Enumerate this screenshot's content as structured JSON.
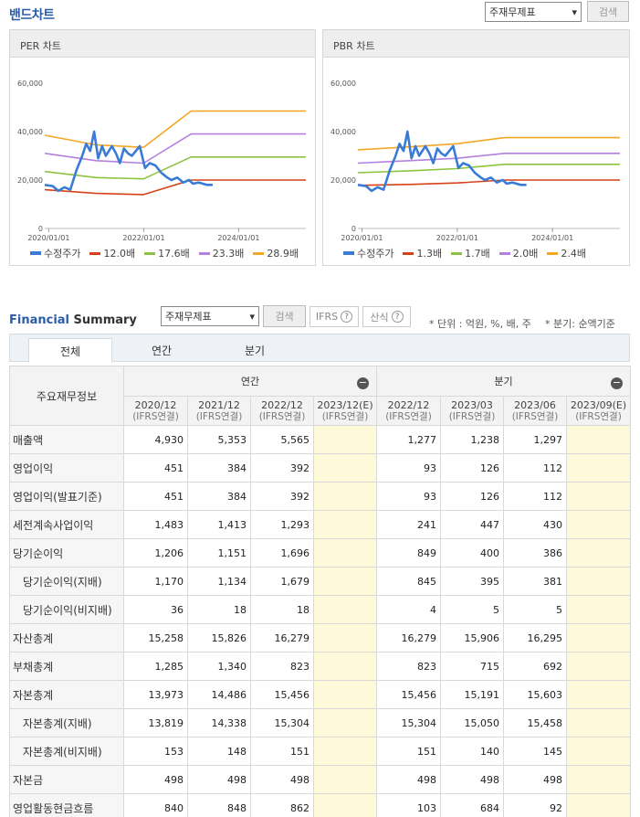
{
  "band_chart": {
    "title": "밴드차트",
    "select_value": "주재무제표",
    "search_label": "검색"
  },
  "per_chart": {
    "title": "PER 차트",
    "chart_data": {
      "type": "line",
      "y_ticks": [
        "0",
        "20,000",
        "40,000",
        "60,000"
      ],
      "ylim": [
        0,
        60000
      ],
      "x_ticks": [
        "2020/01/01",
        "2022/01/01",
        "2024/01/01"
      ],
      "xlim": [
        "2019-12-01",
        "2025-06-01"
      ],
      "series": [
        {
          "name": "수정주가",
          "color": "#3a7bd5",
          "points": [
            [
              "2019-12-01",
              18000
            ],
            [
              "2020-02-01",
              17500
            ],
            [
              "2020-03-15",
              15500
            ],
            [
              "2020-05-01",
              17000
            ],
            [
              "2020-06-15",
              16000
            ],
            [
              "2020-08-01",
              24000
            ],
            [
              "2020-09-15",
              30000
            ],
            [
              "2020-10-15",
              35000
            ],
            [
              "2020-11-15",
              32000
            ],
            [
              "2020-12-15",
              40000
            ],
            [
              "2021-01-15",
              29000
            ],
            [
              "2021-02-15",
              34000
            ],
            [
              "2021-03-15",
              30000
            ],
            [
              "2021-05-01",
              34000
            ],
            [
              "2021-06-01",
              31000
            ],
            [
              "2021-07-01",
              27000
            ],
            [
              "2021-08-01",
              33000
            ],
            [
              "2021-09-01",
              31000
            ],
            [
              "2021-10-01",
              30000
            ],
            [
              "2021-12-01",
              34000
            ],
            [
              "2022-01-10",
              25000
            ],
            [
              "2022-02-15",
              27000
            ],
            [
              "2022-04-01",
              26000
            ],
            [
              "2022-05-15",
              23000
            ],
            [
              "2022-07-01",
              21000
            ],
            [
              "2022-08-01",
              20000
            ],
            [
              "2022-09-15",
              21000
            ],
            [
              "2022-11-01",
              19000
            ],
            [
              "2022-12-15",
              20000
            ],
            [
              "2023-01-15",
              18500
            ],
            [
              "2023-03-01",
              19000
            ],
            [
              "2023-05-01",
              18000
            ],
            [
              "2023-06-15",
              18000
            ]
          ]
        },
        {
          "name": "12.0배",
          "color": "#d4421a",
          "points": [
            [
              "2019-12-01",
              16000
            ],
            [
              "2020-12-31",
              14500
            ],
            [
              "2021-12-31",
              14000
            ],
            [
              "2022-12-31",
              20000
            ],
            [
              "2025-06-01",
              20000
            ]
          ]
        },
        {
          "name": "17.6배",
          "color": "#8cc43e",
          "points": [
            [
              "2019-12-01",
              23500
            ],
            [
              "2020-12-31",
              21000
            ],
            [
              "2021-12-31",
              20500
            ],
            [
              "2022-12-31",
              29500
            ],
            [
              "2025-06-01",
              29500
            ]
          ]
        },
        {
          "name": "23.3배",
          "color": "#b57fe0",
          "points": [
            [
              "2019-12-01",
              31000
            ],
            [
              "2020-12-31",
              28000
            ],
            [
              "2021-12-31",
              27000
            ],
            [
              "2022-12-31",
              39000
            ],
            [
              "2025-06-01",
              39000
            ]
          ]
        },
        {
          "name": "28.9배",
          "color": "#f5a623",
          "points": [
            [
              "2019-12-01",
              38500
            ],
            [
              "2020-12-31",
              34500
            ],
            [
              "2021-12-31",
              33500
            ],
            [
              "2022-12-31",
              48500
            ],
            [
              "2025-06-01",
              48500
            ]
          ]
        }
      ]
    }
  },
  "pbr_chart": {
    "title": "PBR 차트",
    "chart_data": {
      "type": "line",
      "y_ticks": [
        "0",
        "20,000",
        "40,000",
        "60,000"
      ],
      "ylim": [
        0,
        60000
      ],
      "x_ticks": [
        "2020/01/01",
        "2022/01/01",
        "2024/01/01"
      ],
      "xlim": [
        "2019-12-01",
        "2025-06-01"
      ],
      "series": [
        {
          "name": "수정주가",
          "color": "#3a7bd5",
          "points": [
            [
              "2019-12-01",
              18000
            ],
            [
              "2020-02-01",
              17500
            ],
            [
              "2020-03-15",
              15500
            ],
            [
              "2020-05-01",
              17000
            ],
            [
              "2020-06-15",
              16000
            ],
            [
              "2020-08-01",
              24000
            ],
            [
              "2020-09-15",
              30000
            ],
            [
              "2020-10-15",
              35000
            ],
            [
              "2020-11-15",
              32000
            ],
            [
              "2020-12-15",
              40000
            ],
            [
              "2021-01-15",
              29000
            ],
            [
              "2021-02-15",
              34000
            ],
            [
              "2021-03-15",
              30000
            ],
            [
              "2021-05-01",
              34000
            ],
            [
              "2021-06-01",
              31000
            ],
            [
              "2021-07-01",
              27000
            ],
            [
              "2021-08-01",
              33000
            ],
            [
              "2021-09-01",
              31000
            ],
            [
              "2021-10-01",
              30000
            ],
            [
              "2021-12-01",
              34000
            ],
            [
              "2022-01-10",
              25000
            ],
            [
              "2022-02-15",
              27000
            ],
            [
              "2022-04-01",
              26000
            ],
            [
              "2022-05-15",
              23000
            ],
            [
              "2022-07-01",
              21000
            ],
            [
              "2022-08-01",
              20000
            ],
            [
              "2022-09-15",
              21000
            ],
            [
              "2022-11-01",
              19000
            ],
            [
              "2022-12-15",
              20000
            ],
            [
              "2023-01-15",
              18500
            ],
            [
              "2023-03-01",
              19000
            ],
            [
              "2023-05-01",
              18000
            ],
            [
              "2023-06-15",
              18000
            ]
          ]
        },
        {
          "name": "1.3배",
          "color": "#d4421a",
          "points": [
            [
              "2019-12-01",
              17800
            ],
            [
              "2020-12-31",
              18200
            ],
            [
              "2021-12-31",
              18800
            ],
            [
              "2022-12-31",
              20000
            ],
            [
              "2025-06-01",
              20000
            ]
          ]
        },
        {
          "name": "1.7배",
          "color": "#8cc43e",
          "points": [
            [
              "2019-12-01",
              23000
            ],
            [
              "2020-12-31",
              23800
            ],
            [
              "2021-12-31",
              24700
            ],
            [
              "2022-12-31",
              26500
            ],
            [
              "2025-06-01",
              26500
            ]
          ]
        },
        {
          "name": "2.0배",
          "color": "#b57fe0",
          "points": [
            [
              "2019-12-01",
              27000
            ],
            [
              "2020-12-31",
              28000
            ],
            [
              "2021-12-31",
              29000
            ],
            [
              "2022-12-31",
              31000
            ],
            [
              "2025-06-01",
              31000
            ]
          ]
        },
        {
          "name": "2.4배",
          "color": "#f5a623",
          "points": [
            [
              "2019-12-01",
              32500
            ],
            [
              "2020-12-31",
              33700
            ],
            [
              "2021-12-31",
              35000
            ],
            [
              "2022-12-31",
              37500
            ],
            [
              "2025-06-01",
              37500
            ]
          ]
        }
      ]
    }
  },
  "financial_summary": {
    "title_accent": "Financial",
    "title_rest": " Summary",
    "select_value": "주재무제표",
    "search_label": "검색",
    "ifrs_label": "IFRS",
    "formula_label": "산식",
    "unit_text": "* 단위 : 억원, %, 배, 주",
    "basis_text": "* 분기: 순액기준",
    "tabs": [
      "전체",
      "연간",
      "분기"
    ],
    "row_header": "주요재무정보",
    "groups": {
      "annual": "연간",
      "quarter": "분기"
    },
    "columns": [
      {
        "period": "2020/12",
        "basis": "(IFRS연결)"
      },
      {
        "period": "2021/12",
        "basis": "(IFRS연결)"
      },
      {
        "period": "2022/12",
        "basis": "(IFRS연결)"
      },
      {
        "period": "2023/12(E)",
        "basis": "(IFRS연결)"
      },
      {
        "period": "2022/12",
        "basis": "(IFRS연결)"
      },
      {
        "period": "2023/03",
        "basis": "(IFRS연결)"
      },
      {
        "period": "2023/06",
        "basis": "(IFRS연결)"
      },
      {
        "period": "2023/09(E)",
        "basis": "(IFRS연결)"
      }
    ],
    "rows": [
      {
        "label": "매출액",
        "indent": false,
        "values": [
          "4,930",
          "5,353",
          "5,565",
          "",
          "1,277",
          "1,238",
          "1,297",
          ""
        ]
      },
      {
        "label": "영업이익",
        "indent": false,
        "values": [
          "451",
          "384",
          "392",
          "",
          "93",
          "126",
          "112",
          ""
        ]
      },
      {
        "label": "영업이익(발표기준)",
        "indent": false,
        "values": [
          "451",
          "384",
          "392",
          "",
          "93",
          "126",
          "112",
          ""
        ]
      },
      {
        "label": "세전계속사업이익",
        "indent": false,
        "values": [
          "1,483",
          "1,413",
          "1,293",
          "",
          "241",
          "447",
          "430",
          ""
        ]
      },
      {
        "label": "당기순이익",
        "indent": false,
        "values": [
          "1,206",
          "1,151",
          "1,696",
          "",
          "849",
          "400",
          "386",
          ""
        ]
      },
      {
        "label": "당기순이익(지배)",
        "indent": true,
        "values": [
          "1,170",
          "1,134",
          "1,679",
          "",
          "845",
          "395",
          "381",
          ""
        ]
      },
      {
        "label": "당기순이익(비지배)",
        "indent": true,
        "values": [
          "36",
          "18",
          "18",
          "",
          "4",
          "5",
          "5",
          ""
        ]
      },
      {
        "label": "자산총계",
        "indent": false,
        "values": [
          "15,258",
          "15,826",
          "16,279",
          "",
          "16,279",
          "15,906",
          "16,295",
          ""
        ]
      },
      {
        "label": "부채총계",
        "indent": false,
        "values": [
          "1,285",
          "1,340",
          "823",
          "",
          "823",
          "715",
          "692",
          ""
        ]
      },
      {
        "label": "자본총계",
        "indent": false,
        "values": [
          "13,973",
          "14,486",
          "15,456",
          "",
          "15,456",
          "15,191",
          "15,603",
          ""
        ]
      },
      {
        "label": "자본총계(지배)",
        "indent": true,
        "values": [
          "13,819",
          "14,338",
          "15,304",
          "",
          "15,304",
          "15,050",
          "15,458",
          ""
        ]
      },
      {
        "label": "자본총계(비지배)",
        "indent": true,
        "values": [
          "153",
          "148",
          "151",
          "",
          "151",
          "140",
          "145",
          ""
        ]
      },
      {
        "label": "자본금",
        "indent": false,
        "values": [
          "498",
          "498",
          "498",
          "",
          "498",
          "498",
          "498",
          ""
        ]
      },
      {
        "label": "영업활동현금흐름",
        "indent": false,
        "values": [
          "840",
          "848",
          "862",
          "",
          "103",
          "684",
          "92",
          ""
        ]
      }
    ],
    "estimate_columns": [
      3,
      7
    ]
  }
}
